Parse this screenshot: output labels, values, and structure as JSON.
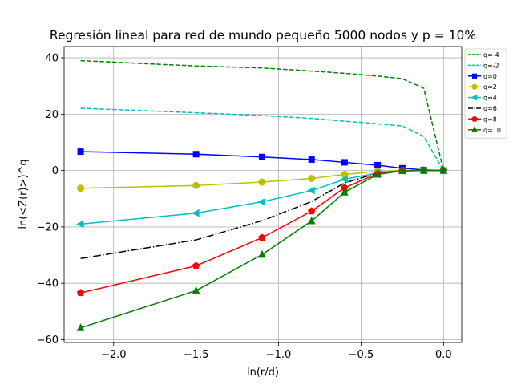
{
  "chart_data": {
    "type": "line",
    "title": "Regresión lineal para red de mundo pequeño 5000 nodos y p = 10%",
    "xlabel": "ln(r/d)",
    "ylabel": "ln(<Z(r)>)^q",
    "xlim": [
      -2.3,
      0.11
    ],
    "ylim": [
      -61,
      44
    ],
    "xticks": [
      -2.0,
      -1.5,
      -1.0,
      -0.5,
      0.0
    ],
    "xtick_labels": [
      "−2.0",
      "−1.5",
      "−1.0",
      "−0.5",
      "0.0"
    ],
    "yticks": [
      -60,
      -40,
      -20,
      0,
      20,
      40
    ],
    "ytick_labels": [
      "−60",
      "−40",
      "−20",
      "0",
      "20",
      "40"
    ],
    "grid": true,
    "legend_position": "top-right",
    "series": [
      {
        "name": "q=-4",
        "color": "#008000",
        "dash": "dashed",
        "marker": "none",
        "x": [
          -2.2,
          -1.5,
          -1.1,
          -0.8,
          -0.6,
          -0.4,
          -0.25,
          -0.12,
          0.0
        ],
        "y": [
          39,
          37.1,
          36.4,
          35.3,
          34.5,
          33.5,
          32.6,
          29.2,
          0
        ]
      },
      {
        "name": "q=-2",
        "color": "#00bfbf",
        "dash": "dashed",
        "marker": "none",
        "x": [
          -2.2,
          -1.5,
          -1.1,
          -0.8,
          -0.6,
          -0.4,
          -0.25,
          -0.12,
          0.0
        ],
        "y": [
          22.1,
          20.5,
          19.5,
          18.5,
          17.5,
          16.6,
          15.8,
          12.1,
          0
        ]
      },
      {
        "name": "q=0",
        "color": "#0000ff",
        "dash": "solid",
        "marker": "square",
        "x": [
          -2.2,
          -1.5,
          -1.1,
          -0.8,
          -0.6,
          -0.4,
          -0.25,
          -0.12,
          0.0
        ],
        "y": [
          6.7,
          5.8,
          4.8,
          3.9,
          2.9,
          1.9,
          0.8,
          0.2,
          0
        ]
      },
      {
        "name": "q=2",
        "color": "#bfbf00",
        "dash": "solid",
        "marker": "circle",
        "x": [
          -2.2,
          -1.5,
          -1.1,
          -0.8,
          -0.6,
          -0.4,
          -0.25,
          -0.12,
          0.0
        ],
        "y": [
          -6.3,
          -5.3,
          -4.1,
          -2.8,
          -1.4,
          -0.3,
          -0.05,
          0,
          0
        ]
      },
      {
        "name": "q=4",
        "color": "#00bfbf",
        "dash": "solid",
        "marker": "triangle-left",
        "x": [
          -2.2,
          -1.5,
          -1.1,
          -0.8,
          -0.6,
          -0.4,
          -0.25,
          -0.12,
          0.0
        ],
        "y": [
          -19,
          -15.1,
          -11.1,
          -7.1,
          -3.1,
          -0.9,
          -0.1,
          0,
          0
        ]
      },
      {
        "name": "q=6",
        "color": "#000000",
        "dash": "dashdot",
        "marker": "none",
        "x": [
          -2.2,
          -1.5,
          -1.1,
          -0.8,
          -0.6,
          -0.4,
          -0.25,
          -0.12,
          0.0
        ],
        "y": [
          -31.2,
          -24.6,
          -17.8,
          -11,
          -4.4,
          -0.9,
          -0.1,
          0,
          0
        ]
      },
      {
        "name": "q=8",
        "color": "#ff0000",
        "dash": "solid",
        "marker": "pentagon",
        "x": [
          -2.2,
          -1.5,
          -1.1,
          -0.8,
          -0.6,
          -0.4,
          -0.25,
          -0.12,
          0.0
        ],
        "y": [
          -43.4,
          -33.8,
          -23.8,
          -14.4,
          -6.1,
          -1.1,
          -0.1,
          0,
          0
        ]
      },
      {
        "name": "q=10",
        "color": "#008000",
        "dash": "solid",
        "marker": "triangle-up",
        "x": [
          -2.2,
          -1.5,
          -1.1,
          -0.8,
          -0.6,
          -0.4,
          -0.25,
          -0.12,
          0.0
        ],
        "y": [
          -55.8,
          -42.6,
          -29.8,
          -17.9,
          -7.7,
          -1.4,
          -0.1,
          0,
          0
        ]
      }
    ]
  }
}
